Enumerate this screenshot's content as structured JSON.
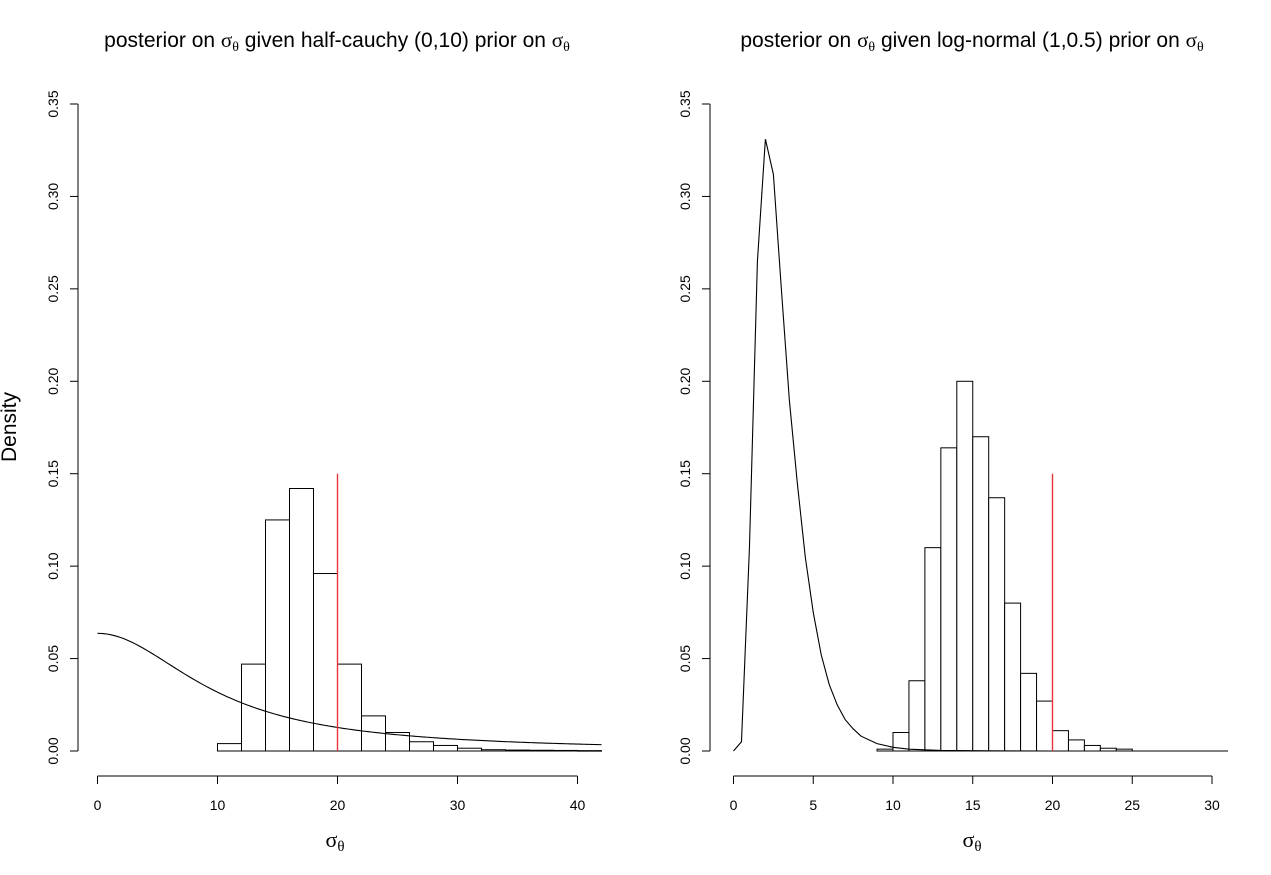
{
  "figure": {
    "ylabel": "Density",
    "sigma_symbol": "σ",
    "theta_symbol": "θ"
  },
  "chart_data": [
    {
      "type": "bar",
      "title_parts": [
        "posterior on ",
        " given half-cauchy (0,10) prior on  "
      ],
      "xlabel": "σθ",
      "ylabel": "Density",
      "xlim": [
        0,
        42
      ],
      "ylim": [
        0,
        0.35
      ],
      "xticks": [
        0,
        10,
        20,
        30,
        40
      ],
      "xtick_labels": [
        "0",
        "10",
        "20",
        "30",
        "40"
      ],
      "yticks": [
        0,
        0.05,
        0.1,
        0.15,
        0.2,
        0.25,
        0.3,
        0.35
      ],
      "ytick_labels": [
        "0.00",
        "0.05",
        "0.10",
        "0.15",
        "0.20",
        "0.25",
        "0.30",
        "0.35"
      ],
      "histogram": {
        "bin_edges": [
          10,
          12,
          14,
          16,
          18,
          20,
          22,
          24,
          26,
          28,
          30,
          32,
          34,
          36,
          38,
          40,
          42
        ],
        "density": [
          0.004,
          0.047,
          0.125,
          0.142,
          0.096,
          0.047,
          0.019,
          0.01,
          0.005,
          0.003,
          0.0015,
          0.0007,
          0.0005,
          0.0004,
          0.0003,
          0.0002
        ]
      },
      "prior_curve": {
        "family": "half-cauchy",
        "location": 0,
        "scale": 10,
        "x_range": [
          0,
          42
        ]
      },
      "reference_line": {
        "x": 20,
        "y_top": 0.15,
        "color": "#e8333b"
      }
    },
    {
      "type": "bar",
      "title_parts": [
        "posterior on ",
        " given log-normal (1,0.5) prior on "
      ],
      "xlabel": "σθ",
      "ylabel": "",
      "xlim": [
        0,
        31
      ],
      "ylim": [
        0,
        0.35
      ],
      "xticks": [
        0,
        5,
        10,
        15,
        20,
        25,
        30
      ],
      "xtick_labels": [
        "0",
        "5",
        "10",
        "15",
        "20",
        "25",
        "30"
      ],
      "yticks": [
        0,
        0.05,
        0.1,
        0.15,
        0.2,
        0.25,
        0.3,
        0.35
      ],
      "ytick_labels": [
        "0.00",
        "0.05",
        "0.10",
        "0.15",
        "0.20",
        "0.25",
        "0.30",
        "0.35"
      ],
      "histogram": {
        "bin_edges": [
          9,
          10,
          11,
          12,
          13,
          14,
          15,
          16,
          17,
          18,
          19,
          20,
          21,
          22,
          23,
          24,
          25
        ],
        "density": [
          0.001,
          0.01,
          0.038,
          0.11,
          0.164,
          0.2,
          0.17,
          0.137,
          0.08,
          0.042,
          0.027,
          0.011,
          0.006,
          0.003,
          0.0015,
          0.001
        ]
      },
      "prior_curve": {
        "family": "log-normal-like",
        "points": [
          [
            0,
            0
          ],
          [
            0.5,
            0.005
          ],
          [
            1,
            0.11
          ],
          [
            1.5,
            0.265
          ],
          [
            2,
            0.331
          ],
          [
            2.5,
            0.312
          ],
          [
            3,
            0.25
          ],
          [
            3.5,
            0.19
          ],
          [
            4,
            0.145
          ],
          [
            4.5,
            0.105
          ],
          [
            5,
            0.075
          ],
          [
            5.5,
            0.052
          ],
          [
            6,
            0.036
          ],
          [
            6.5,
            0.025
          ],
          [
            7,
            0.017
          ],
          [
            7.5,
            0.012
          ],
          [
            8,
            0.008
          ],
          [
            9,
            0.004
          ],
          [
            10,
            0.002
          ],
          [
            11,
            0.001
          ],
          [
            13,
            0.0003
          ],
          [
            16,
            0.0001
          ],
          [
            20,
            0
          ],
          [
            31,
            0
          ]
        ]
      },
      "reference_line": {
        "x": 20,
        "y_top": 0.15,
        "color": "#e8333b"
      }
    }
  ]
}
